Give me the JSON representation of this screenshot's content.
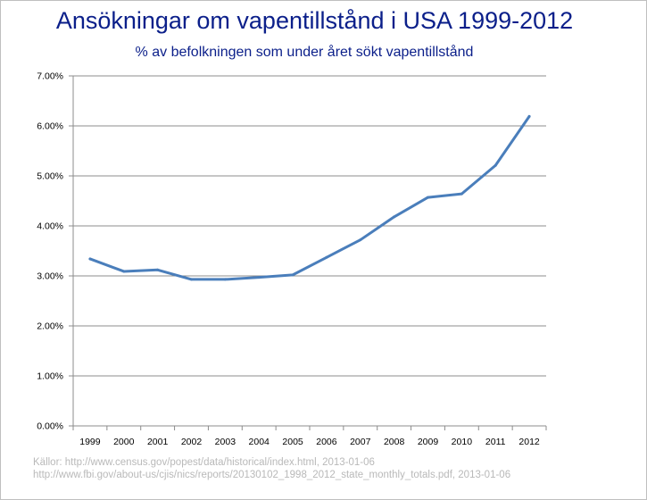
{
  "chart_data": {
    "type": "line",
    "title": "Ansökningar om vapentillstånd i USA 1999-2012",
    "subtitle": "% av befolkningen som under året sökt vapentillstånd",
    "xlabel": "",
    "ylabel": "",
    "categories": [
      "1999",
      "2000",
      "2001",
      "2002",
      "2003",
      "2004",
      "2005",
      "2006",
      "2007",
      "2008",
      "2009",
      "2010",
      "2011",
      "2012"
    ],
    "series": [
      {
        "values": [
          3.34,
          3.09,
          3.12,
          2.93,
          2.93,
          2.97,
          3.02,
          3.37,
          3.72,
          4.18,
          4.57,
          4.64,
          5.21,
          6.19
        ]
      }
    ],
    "ylim": [
      0,
      7
    ],
    "yticks": [
      "0.00%",
      "1.00%",
      "2.00%",
      "3.00%",
      "4.00%",
      "5.00%",
      "6.00%",
      "7.00%"
    ],
    "grid": true,
    "legend": "none",
    "line_color": "#4a7ebb"
  },
  "source": {
    "line1": "Källor: http://www.census.gov/popest/data/historical/index.html, 2013-01-06",
    "line2": "http://www.fbi.gov/about-us/cjis/nics/reports/20130102_1998_2012_state_monthly_totals.pdf, 2013-01-06"
  }
}
